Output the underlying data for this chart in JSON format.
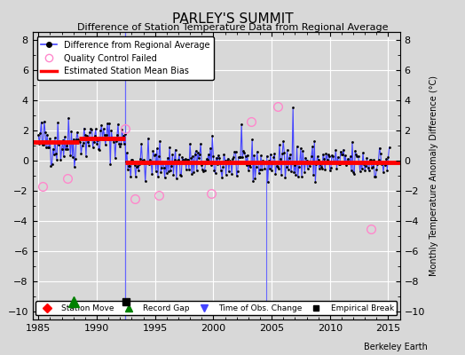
{
  "title": "PARLEY'S SUMMIT",
  "subtitle": "Difference of Station Temperature Data from Regional Average",
  "ylabel": "Monthly Temperature Anomaly Difference (°C)",
  "xlabel_bottom": "Berkeley Earth",
  "bg_color": "#d8d8d8",
  "plot_bg_color": "#d8d8d8",
  "ylim": [
    -10.5,
    8.5
  ],
  "xlim": [
    1984.5,
    2016.0
  ],
  "yticks": [
    -10,
    -8,
    -6,
    -4,
    -2,
    0,
    2,
    4,
    6,
    8
  ],
  "xticks": [
    1985,
    1990,
    1995,
    2000,
    2005,
    2010,
    2015
  ],
  "bias_segments": [
    {
      "x_start": 1984.5,
      "x_end": 1988.5,
      "y": 1.25
    },
    {
      "x_start": 1988.5,
      "x_end": 1992.42,
      "y": 1.45
    },
    {
      "x_start": 1992.42,
      "x_end": 2016.0,
      "y": -0.12
    }
  ],
  "record_gap_x": 1988.0,
  "empirical_break_x": 1992.5,
  "obs_change_x": 2004.5,
  "vertical_line_x1": 1992.42,
  "vertical_line_x2": 2004.5,
  "qc_failed_points": [
    [
      1985.33,
      -1.7
    ],
    [
      1987.5,
      -1.15
    ],
    [
      1992.42,
      2.1
    ],
    [
      1993.25,
      -2.5
    ],
    [
      1995.33,
      -2.3
    ],
    [
      1999.83,
      -2.2
    ],
    [
      2003.25,
      2.6
    ],
    [
      2005.5,
      3.6
    ],
    [
      2013.5,
      -4.5
    ]
  ],
  "main_line_color": "#4444ff",
  "main_dot_color": "#000000",
  "qc_color": "#ff88cc",
  "bias_color": "#ff0000",
  "vert_line_color": "#6666ff",
  "seed": 42,
  "phase1_mean": 1.25,
  "phase1_std": 0.85,
  "phase2_mean": 1.45,
  "phase2_std": 0.65,
  "phase3_mean": -0.12,
  "phase3_std": 0.65
}
